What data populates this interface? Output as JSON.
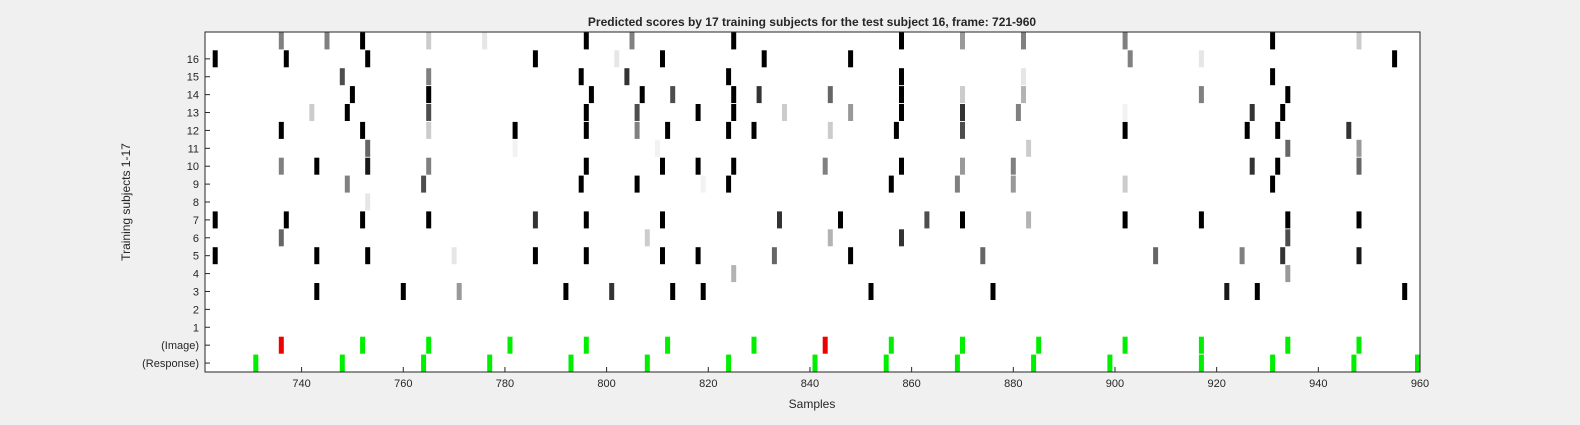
{
  "chart_data": {
    "type": "heatmap",
    "title": "Predicted scores by 17 training subjects for the test subject 16, frame: 721-960",
    "xlabel": "Samples",
    "ylabel": "Training subjects 1-17",
    "xlim": [
      721,
      960
    ],
    "x_ticks": [
      740,
      760,
      780,
      800,
      820,
      840,
      860,
      880,
      900,
      920,
      940,
      960
    ],
    "rows": [
      "(Response)",
      "(Image)",
      "1",
      "2",
      "3",
      "4",
      "5",
      "6",
      "7",
      "8",
      "9",
      "10",
      "11",
      "12",
      "13",
      "14",
      "15",
      "16",
      "17"
    ],
    "y_tick_labels": [
      "(Response)",
      "(Image)",
      "1",
      "2",
      "3",
      "4",
      "5",
      "6",
      "7",
      "8",
      "9",
      "10",
      "11",
      "12",
      "13",
      "14",
      "15",
      "16"
    ],
    "colormap": "gray (white = 0, black = 1)",
    "event_colors": {
      "correct": "#00ee00",
      "incorrect": "#ee0000"
    },
    "response_events": [
      {
        "x": 731,
        "color": "correct"
      },
      {
        "x": 748,
        "color": "correct"
      },
      {
        "x": 764,
        "color": "correct"
      },
      {
        "x": 777,
        "color": "correct"
      },
      {
        "x": 793,
        "color": "correct"
      },
      {
        "x": 808,
        "color": "correct"
      },
      {
        "x": 824,
        "color": "correct"
      },
      {
        "x": 841,
        "color": "correct"
      },
      {
        "x": 855,
        "color": "correct"
      },
      {
        "x": 869,
        "color": "correct"
      },
      {
        "x": 884,
        "color": "correct"
      },
      {
        "x": 899,
        "color": "correct"
      },
      {
        "x": 917,
        "color": "correct"
      },
      {
        "x": 931,
        "color": "correct"
      },
      {
        "x": 947,
        "color": "correct"
      },
      {
        "x": 960,
        "color": "correct"
      }
    ],
    "image_events": [
      {
        "x": 736,
        "color": "incorrect"
      },
      {
        "x": 752,
        "color": "correct"
      },
      {
        "x": 765,
        "color": "correct"
      },
      {
        "x": 781,
        "color": "correct"
      },
      {
        "x": 796,
        "color": "correct"
      },
      {
        "x": 812,
        "color": "correct"
      },
      {
        "x": 829,
        "color": "correct"
      },
      {
        "x": 843,
        "color": "incorrect"
      },
      {
        "x": 856,
        "color": "correct"
      },
      {
        "x": 870,
        "color": "correct"
      },
      {
        "x": 885,
        "color": "correct"
      },
      {
        "x": 902,
        "color": "correct"
      },
      {
        "x": 917,
        "color": "correct"
      },
      {
        "x": 934,
        "color": "correct"
      },
      {
        "x": 948,
        "color": "correct"
      }
    ],
    "scores": [
      {
        "row": "3",
        "cells": [
          [
            743,
            1
          ],
          [
            760,
            1
          ],
          [
            771,
            0.4
          ],
          [
            792,
            1
          ],
          [
            801,
            0.8
          ],
          [
            813,
            1
          ],
          [
            819,
            1
          ],
          [
            852,
            1
          ],
          [
            876,
            1
          ],
          [
            922,
            0.9
          ],
          [
            928,
            1
          ],
          [
            957,
            1
          ]
        ]
      },
      {
        "row": "4",
        "cells": [
          [
            825,
            0.3
          ],
          [
            934,
            0.4
          ]
        ]
      },
      {
        "row": "5",
        "cells": [
          [
            723,
            1
          ],
          [
            743,
            1
          ],
          [
            753,
            1
          ],
          [
            770,
            0.1
          ],
          [
            786,
            1
          ],
          [
            796,
            1
          ],
          [
            811,
            1
          ],
          [
            818,
            1
          ],
          [
            833,
            0.6
          ],
          [
            848,
            1
          ],
          [
            874,
            0.6
          ],
          [
            908,
            0.6
          ],
          [
            925,
            0.5
          ],
          [
            933,
            0.8
          ],
          [
            948,
            0.9
          ]
        ]
      },
      {
        "row": "6",
        "cells": [
          [
            736,
            0.6
          ],
          [
            808,
            0.2
          ],
          [
            844,
            0.3
          ],
          [
            858,
            0.8
          ],
          [
            934,
            0.7
          ]
        ]
      },
      {
        "row": "7",
        "cells": [
          [
            723,
            1
          ],
          [
            737,
            1
          ],
          [
            752,
            1
          ],
          [
            765,
            1
          ],
          [
            786,
            0.8
          ],
          [
            796,
            1
          ],
          [
            811,
            1
          ],
          [
            834,
            0.8
          ],
          [
            846,
            1
          ],
          [
            863,
            0.7
          ],
          [
            870,
            1
          ],
          [
            883,
            0.3
          ],
          [
            902,
            1
          ],
          [
            917,
            1
          ],
          [
            934,
            1
          ],
          [
            948,
            1
          ]
        ]
      },
      {
        "row": "8",
        "cells": [
          [
            753,
            0.1
          ]
        ]
      },
      {
        "row": "9",
        "cells": [
          [
            749,
            0.5
          ],
          [
            764,
            0.7
          ],
          [
            795,
            1
          ],
          [
            806,
            1
          ],
          [
            819,
            0.05
          ],
          [
            824,
            1
          ],
          [
            856,
            1
          ],
          [
            869,
            0.5
          ],
          [
            880,
            0.4
          ],
          [
            902,
            0.2
          ],
          [
            931,
            1
          ]
        ]
      },
      {
        "row": "10",
        "cells": [
          [
            736,
            0.5
          ],
          [
            743,
            1
          ],
          [
            753,
            0.9
          ],
          [
            765,
            0.5
          ],
          [
            796,
            1
          ],
          [
            811,
            1
          ],
          [
            818,
            1
          ],
          [
            825,
            1
          ],
          [
            843,
            0.5
          ],
          [
            858,
            1
          ],
          [
            870,
            0.4
          ],
          [
            880,
            0.5
          ],
          [
            927,
            0.8
          ],
          [
            932,
            1
          ],
          [
            948,
            0.6
          ]
        ]
      },
      {
        "row": "11",
        "cells": [
          [
            753,
            0.6
          ],
          [
            782,
            0.05
          ],
          [
            810,
            0.05
          ],
          [
            883,
            0.2
          ],
          [
            934,
            0.6
          ],
          [
            948,
            0.4
          ]
        ]
      },
      {
        "row": "12",
        "cells": [
          [
            736,
            1
          ],
          [
            752,
            1
          ],
          [
            765,
            0.2
          ],
          [
            782,
            1
          ],
          [
            796,
            1
          ],
          [
            806,
            0.5
          ],
          [
            812,
            1
          ],
          [
            824,
            1
          ],
          [
            829,
            1
          ],
          [
            844,
            0.2
          ],
          [
            857,
            1
          ],
          [
            870,
            0.7
          ],
          [
            902,
            1
          ],
          [
            926,
            1
          ],
          [
            932,
            1
          ],
          [
            946,
            0.8
          ]
        ]
      },
      {
        "row": "13",
        "cells": [
          [
            742,
            0.2
          ],
          [
            749,
            1
          ],
          [
            765,
            0.7
          ],
          [
            796,
            1
          ],
          [
            806,
            0.7
          ],
          [
            818,
            1
          ],
          [
            825,
            1
          ],
          [
            835,
            0.2
          ],
          [
            848,
            0.4
          ],
          [
            858,
            1
          ],
          [
            870,
            0.8
          ],
          [
            881,
            0.5
          ],
          [
            902,
            0.05
          ],
          [
            927,
            0.8
          ],
          [
            933,
            1
          ]
        ]
      },
      {
        "row": "14",
        "cells": [
          [
            750,
            1
          ],
          [
            765,
            1
          ],
          [
            797,
            1
          ],
          [
            807,
            1
          ],
          [
            813,
            0.7
          ],
          [
            825,
            1
          ],
          [
            830,
            0.8
          ],
          [
            844,
            0.6
          ],
          [
            858,
            1
          ],
          [
            870,
            0.2
          ],
          [
            882,
            0.3
          ],
          [
            917,
            0.5
          ],
          [
            934,
            1
          ]
        ]
      },
      {
        "row": "15",
        "cells": [
          [
            748,
            0.7
          ],
          [
            765,
            0.5
          ],
          [
            795,
            1
          ],
          [
            804,
            0.8
          ],
          [
            824,
            1
          ],
          [
            858,
            1
          ],
          [
            882,
            0.1
          ],
          [
            931,
            1
          ]
        ]
      },
      {
        "row": "16",
        "cells": [
          [
            723,
            1
          ],
          [
            737,
            1
          ],
          [
            753,
            1
          ],
          [
            786,
            1
          ],
          [
            802,
            0.1
          ],
          [
            811,
            1
          ],
          [
            831,
            1
          ],
          [
            848,
            1
          ],
          [
            903,
            0.5
          ],
          [
            917,
            0.1
          ],
          [
            955,
            1
          ]
        ]
      },
      {
        "row": "17",
        "cells": [
          [
            736,
            0.5
          ],
          [
            745,
            0.5
          ],
          [
            752,
            1
          ],
          [
            765,
            0.2
          ],
          [
            776,
            0.1
          ],
          [
            796,
            1
          ],
          [
            805,
            0.5
          ],
          [
            825,
            1
          ],
          [
            858,
            1
          ],
          [
            870,
            0.4
          ],
          [
            882,
            0.5
          ],
          [
            902,
            0.5
          ],
          [
            931,
            1
          ],
          [
            948,
            0.2
          ]
        ]
      }
    ]
  }
}
